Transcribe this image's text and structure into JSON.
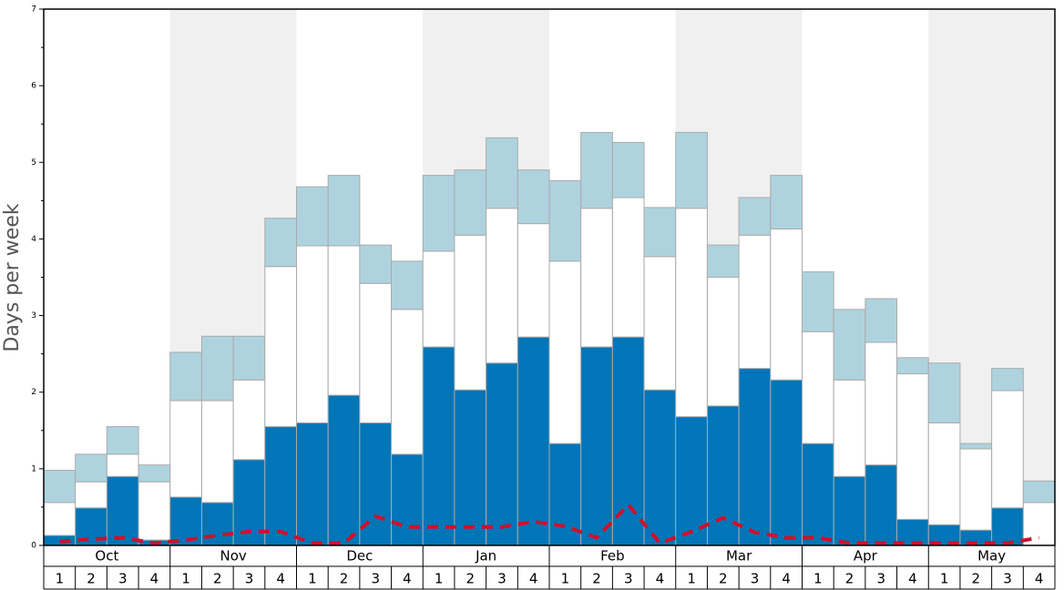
{
  "chart_data": {
    "type": "stacked_bar",
    "y_label": "Days per week",
    "groups": [
      "Oct",
      "Nov",
      "Dec",
      "Jan",
      "Feb",
      "Mar",
      "Apr",
      "May"
    ],
    "categories": [
      "1",
      "2",
      "3",
      "4",
      "1",
      "2",
      "3",
      "4",
      "1",
      "2",
      "3",
      "4",
      "1",
      "2",
      "3",
      "4",
      "1",
      "2",
      "3",
      "4",
      "1",
      "2",
      "3",
      "4",
      "1",
      "2",
      "3",
      "4",
      "1",
      "2",
      "3",
      "4"
    ],
    "series": [
      {
        "color": "#0075b7",
        "values": [
          0.13,
          0.49,
          0.9,
          0.07,
          0.63,
          0.56,
          1.12,
          1.55,
          1.6,
          1.96,
          1.6,
          1.19,
          2.59,
          2.03,
          2.38,
          2.72,
          1.33,
          2.59,
          2.72,
          2.03,
          1.68,
          1.82,
          2.31,
          2.16,
          1.33,
          0.9,
          1.05,
          0.34,
          0.27,
          0.2,
          0.49,
          0
        ]
      },
      {
        "color": "#ffffff",
        "values": [
          0.43,
          0.34,
          0.29,
          0.76,
          1.26,
          1.33,
          1.04,
          2.09,
          2.31,
          1.95,
          1.82,
          1.89,
          1.25,
          2.02,
          2.02,
          1.48,
          2.38,
          1.81,
          1.82,
          1.74,
          2.72,
          1.68,
          1.74,
          1.97,
          1.46,
          1.26,
          1.6,
          1.9,
          1.33,
          1.06,
          1.53,
          0.56
        ]
      },
      {
        "color": "#aed3df",
        "values": [
          0.42,
          0.36,
          0.36,
          0.22,
          0.63,
          0.84,
          0.57,
          0.63,
          0.77,
          0.92,
          0.5,
          0.63,
          0.99,
          0.85,
          0.92,
          0.7,
          1.05,
          0.99,
          0.72,
          0.64,
          0.99,
          0.42,
          0.49,
          0.7,
          0.78,
          0.92,
          0.57,
          0.21,
          0.78,
          0.07,
          0.29,
          0.28
        ]
      },
      {
        "type": "line",
        "color": "#d0102a",
        "values": [
          0.05,
          0.08,
          0.1,
          0.03,
          0.07,
          0.13,
          0.18,
          0.18,
          0.03,
          0.03,
          0.38,
          0.24,
          0.24,
          0.24,
          0.24,
          0.31,
          0.25,
          0.1,
          0.53,
          0.03,
          0.18,
          0.36,
          0.17,
          0.1,
          0.1,
          0.03,
          0.03,
          0.03,
          0.03,
          0.03,
          0.03,
          0.1
        ]
      }
    ],
    "ylim": [
      0,
      7
    ],
    "yticks": [
      0,
      1,
      2,
      3,
      4,
      5,
      6,
      7
    ]
  }
}
